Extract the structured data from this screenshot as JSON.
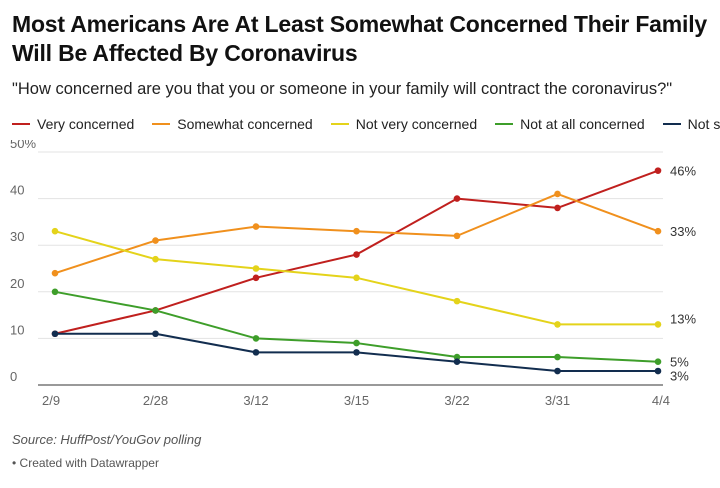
{
  "chart_data": {
    "type": "line",
    "title": "Most Americans Are At Least Somewhat Concerned Their Family Will Be Affected By Coronavirus",
    "subtitle": "\"How concerned are you that you or someone in your family will contract the coronavirus?\"",
    "categories": [
      "2/9",
      "2/28",
      "3/12",
      "3/15",
      "3/22",
      "3/31",
      "4/4"
    ],
    "ylim": [
      0,
      50
    ],
    "yticks": [
      0,
      10,
      20,
      30,
      40,
      50
    ],
    "ytick_labels": [
      "0",
      "10",
      "20",
      "30",
      "40",
      "50%"
    ],
    "grid": true,
    "legend_position": "top",
    "series": [
      {
        "name": "Very concerned",
        "color": "#c0201e",
        "values": [
          11,
          16,
          23,
          28,
          40,
          38,
          46
        ],
        "end_label": "46%"
      },
      {
        "name": "Somewhat concerned",
        "color": "#f0901d",
        "values": [
          24,
          31,
          34,
          33,
          32,
          41,
          33
        ],
        "end_label": "33%"
      },
      {
        "name": "Not very concerned",
        "color": "#e4d31a",
        "values": [
          33,
          27,
          25,
          23,
          18,
          13,
          13
        ],
        "end_label": "13%"
      },
      {
        "name": "Not at all concerned",
        "color": "#3e9e2a",
        "values": [
          20,
          16,
          10,
          9,
          6,
          6,
          5
        ],
        "end_label": "5%"
      },
      {
        "name": "Not sure",
        "color": "#122d4f",
        "values": [
          11,
          11,
          7,
          7,
          5,
          3,
          3
        ],
        "end_label": "3%"
      }
    ],
    "source": "Source: HuffPost/YouGov polling",
    "credit": "• Created with Datawrapper"
  }
}
